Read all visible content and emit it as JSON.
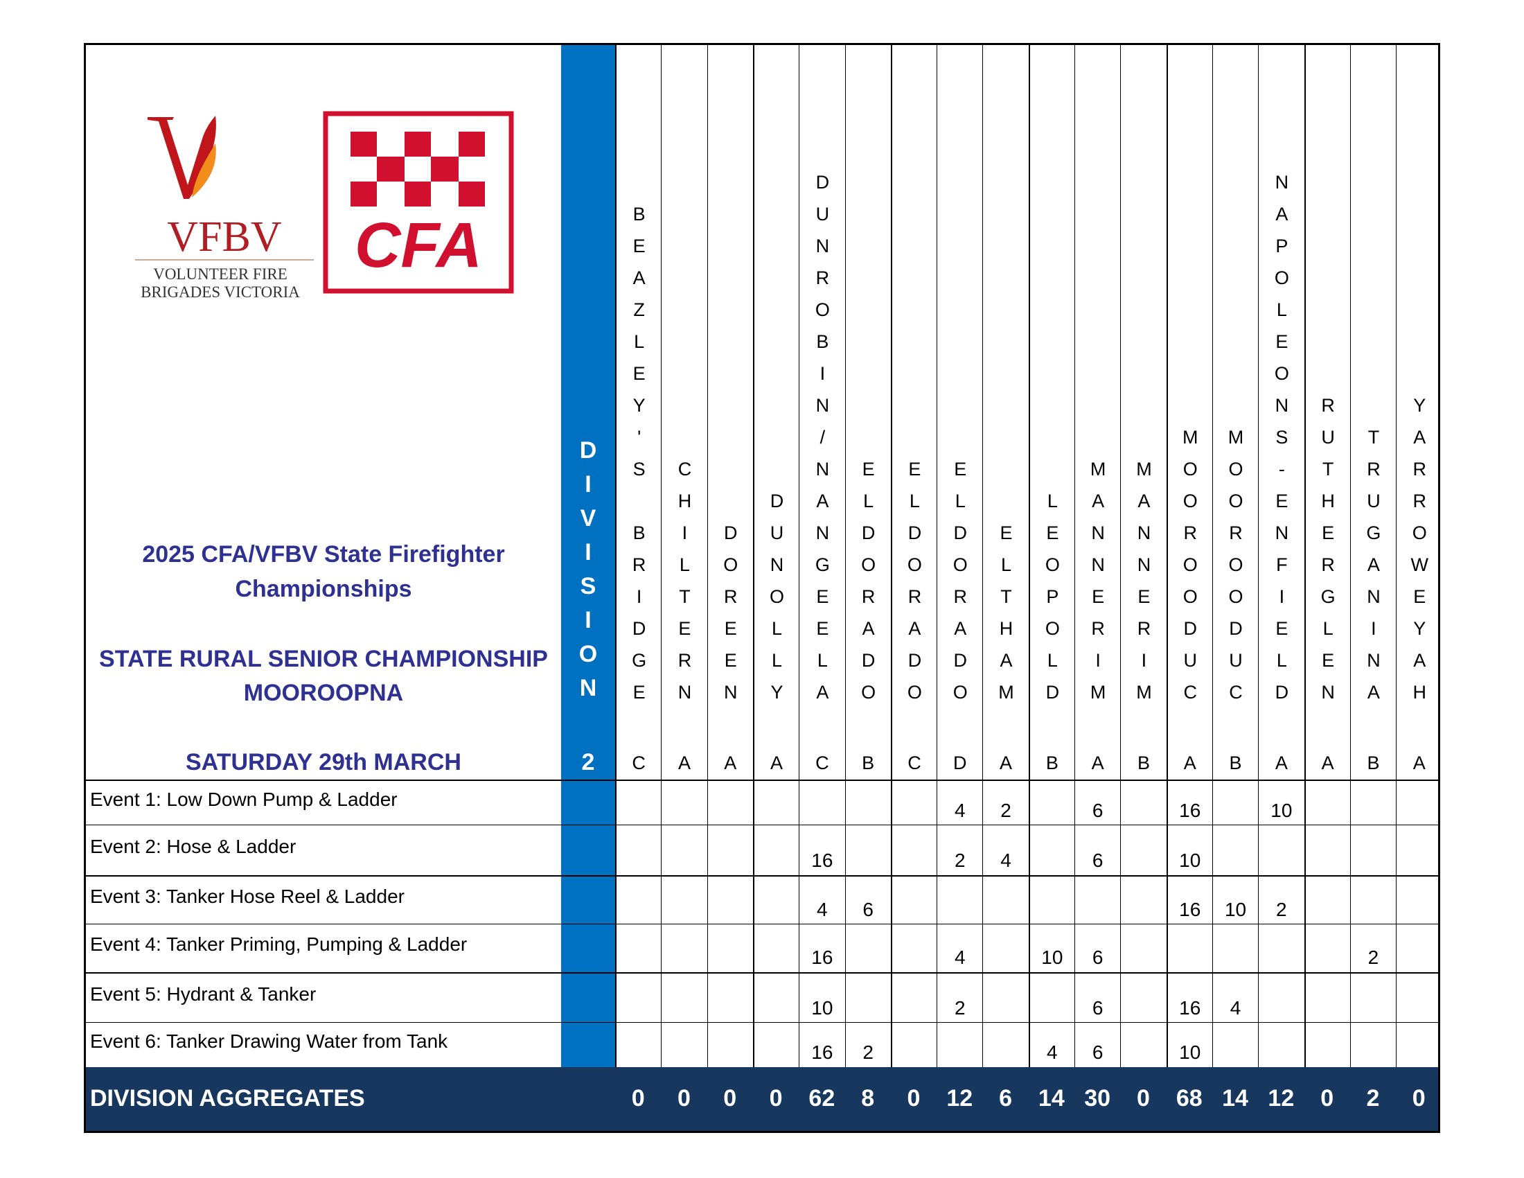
{
  "logos": {
    "vfbv_text": "VFBV",
    "vfbv_sub1": "VOLUNTEER FIRE",
    "vfbv_sub2": "BRIGADES VICTORIA",
    "cfa_text": "CFA"
  },
  "header": {
    "title_line1": "2025 CFA/VFBV State Firefighter",
    "title_line2": "Championships",
    "subtitle_line1": "STATE RURAL SENIOR CHAMPIONSHIP",
    "subtitle_line2": "MOOROOPNA",
    "date": "SATURDAY 29th MARCH"
  },
  "division": {
    "label": "DIVISION",
    "number": "2"
  },
  "colors": {
    "division_blue": "#0070c0",
    "aggregate_navy": "#17375e",
    "title": "#2e3192"
  },
  "teams": [
    {
      "name": "BEAZLEY'S BRIDGE",
      "class": "C"
    },
    {
      "name": "CHILTERN",
      "class": "A"
    },
    {
      "name": "DOREEN",
      "class": "A"
    },
    {
      "name": "DUNOLLY",
      "class": "A"
    },
    {
      "name": "DUNROBIN/NANGEELA",
      "class": "C"
    },
    {
      "name": "ELDORADO",
      "class": "B"
    },
    {
      "name": "ELDORADO",
      "class": "C"
    },
    {
      "name": "ELDORADO",
      "class": "D"
    },
    {
      "name": "ELTHAM",
      "class": "A"
    },
    {
      "name": "LEOPOLD",
      "class": "B"
    },
    {
      "name": "MANNERIM",
      "class": "A"
    },
    {
      "name": "MANNERIM",
      "class": "B"
    },
    {
      "name": "MOOROODUC",
      "class": "A"
    },
    {
      "name": "MOOROODUC",
      "class": "B"
    },
    {
      "name": "NAPOLEONS-ENFIELD",
      "class": "A"
    },
    {
      "name": "RUTHERGLEN",
      "class": "A"
    },
    {
      "name": "TRUGANINA",
      "class": "B"
    },
    {
      "name": "YARROWEYAH",
      "class": "A"
    }
  ],
  "events": [
    {
      "label": "Event 1: Low Down Pump & Ladder",
      "scores": [
        "",
        "",
        "",
        "",
        "",
        "",
        "",
        "4",
        "2",
        "",
        "6",
        "",
        "16",
        "",
        "10",
        "",
        "",
        ""
      ]
    },
    {
      "label": "Event 2: Hose & Ladder",
      "scores": [
        "",
        "",
        "",
        "",
        "16",
        "",
        "",
        "2",
        "4",
        "",
        "6",
        "",
        "10",
        "",
        "",
        "",
        "",
        ""
      ]
    },
    {
      "label": "Event 3: Tanker Hose Reel & Ladder",
      "scores": [
        "",
        "",
        "",
        "",
        "4",
        "6",
        "",
        "",
        "",
        "",
        "",
        "",
        "16",
        "10",
        "2",
        "",
        "",
        ""
      ]
    },
    {
      "label": "Event 4: Tanker Priming, Pumping & Ladder",
      "scores": [
        "",
        "",
        "",
        "",
        "16",
        "",
        "",
        "4",
        "",
        "10",
        "6",
        "",
        "",
        "",
        "",
        "",
        "2",
        ""
      ]
    },
    {
      "label": "Event 5: Hydrant & Tanker",
      "scores": [
        "",
        "",
        "",
        "",
        "10",
        "",
        "",
        "2",
        "",
        "",
        "6",
        "",
        "16",
        "4",
        "",
        "",
        "",
        ""
      ]
    },
    {
      "label": "Event 6: Tanker Drawing Water from Tank",
      "scores": [
        "",
        "",
        "",
        "",
        "16",
        "2",
        "",
        "",
        "",
        "4",
        "6",
        "",
        "10",
        "",
        "",
        "",
        "",
        ""
      ]
    }
  ],
  "aggregates": {
    "label": "DIVISION AGGREGATES",
    "values": [
      "0",
      "0",
      "0",
      "0",
      "62",
      "8",
      "0",
      "12",
      "6",
      "14",
      "30",
      "0",
      "68",
      "14",
      "12",
      "0",
      "2",
      "0"
    ]
  }
}
